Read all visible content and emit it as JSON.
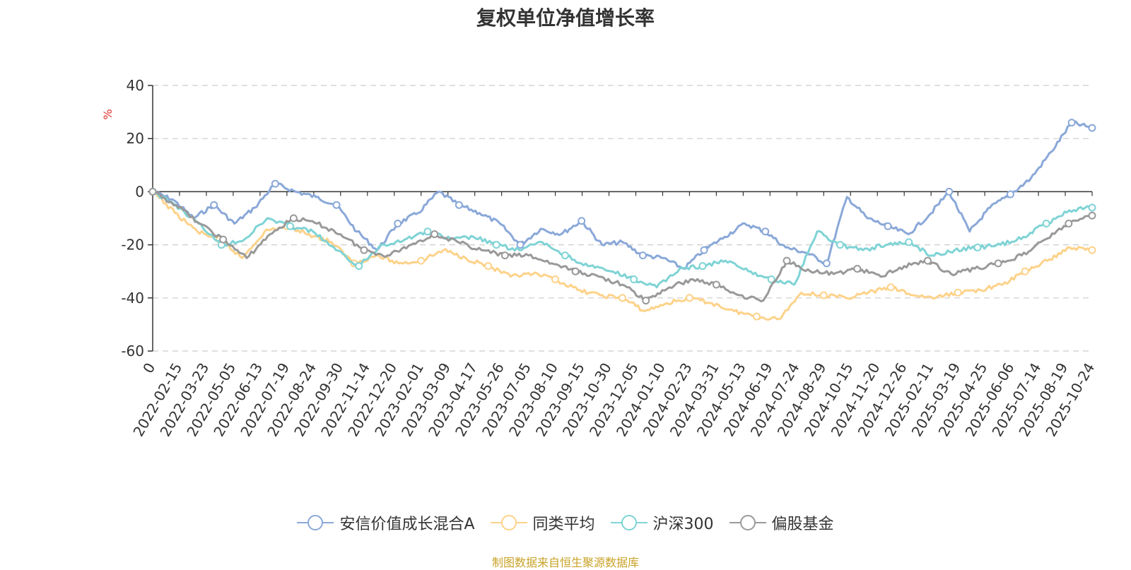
{
  "chart_data": {
    "type": "line",
    "title": "复权单位净值增长率",
    "ylabel": "%",
    "xlabel": "",
    "ylim": [
      -60,
      40
    ],
    "yticks": [
      40,
      20,
      0,
      -20,
      -40,
      -60
    ],
    "grid": true,
    "legend_position": "bottom",
    "x_tick_labels": [
      "0",
      "2022-02-15",
      "2022-03-23",
      "2022-05-05",
      "2022-06-13",
      "2022-07-19",
      "2022-08-24",
      "2022-09-30",
      "2022-11-14",
      "2022-12-20",
      "2023-02-01",
      "2023-03-09",
      "2023-04-17",
      "2023-05-26",
      "2023-07-05",
      "2023-08-10",
      "2023-09-15",
      "2023-10-30",
      "2023-12-05",
      "2024-01-10",
      "2024-02-23",
      "2024-03-31",
      "2024-05-13",
      "2024-06-19",
      "2024-07-24",
      "2024-08-29",
      "2024-10-15",
      "2024-11-20",
      "2024-12-26",
      "2025-02-11",
      "2025-03-19",
      "2025-04-25",
      "2025-06-06",
      "2025-07-14",
      "2025-08-19",
      "2025-10-24"
    ],
    "series": [
      {
        "name": "安信价值成长混合A",
        "color": "#8aa8d8",
        "values": [
          0,
          -3,
          -10,
          -5,
          -12,
          -6,
          3,
          0,
          -2,
          -5,
          -15,
          -22,
          -12,
          -8,
          0,
          -5,
          -8,
          -12,
          -20,
          -14,
          -16,
          -11,
          -20,
          -19,
          -24,
          -25,
          -29,
          -22,
          -17,
          -12,
          -15,
          -21,
          -23,
          -27,
          -2,
          -10,
          -13,
          -16,
          -9,
          0,
          -15,
          -6,
          -1,
          5,
          15,
          26,
          24
        ]
      },
      {
        "name": "同类平均",
        "color": "#fdd28a",
        "values": [
          0,
          -8,
          -15,
          -18,
          -25,
          -15,
          -13,
          -16,
          -19,
          -27,
          -24,
          -27,
          -26,
          -22,
          -25,
          -28,
          -32,
          -31,
          -33,
          -37,
          -39,
          -40,
          -45,
          -42,
          -40,
          -42,
          -45,
          -47,
          -48,
          -38,
          -39,
          -40,
          -38,
          -36,
          -39,
          -40,
          -38,
          -37,
          -35,
          -30,
          -26,
          -21,
          -22
        ]
      },
      {
        "name": "沪深300",
        "color": "#7fd3d5",
        "values": [
          0,
          -5,
          -12,
          -20,
          -18,
          -10,
          -13,
          -15,
          -22,
          -28,
          -20,
          -18,
          -15,
          -18,
          -17,
          -20,
          -22,
          -19,
          -24,
          -28,
          -30,
          -33,
          -36,
          -29,
          -28,
          -26,
          -30,
          -33,
          -35,
          -15,
          -20,
          -22,
          -20,
          -19,
          -24,
          -22,
          -21,
          -20,
          -17,
          -12,
          -7,
          -6
        ]
      },
      {
        "name": "偏股基金",
        "color": "#999999",
        "values": [
          0,
          -5,
          -12,
          -18,
          -25,
          -16,
          -10,
          -12,
          -16,
          -22,
          -24,
          -20,
          -16,
          -19,
          -22,
          -24,
          -24,
          -27,
          -30,
          -32,
          -35,
          -41,
          -36,
          -33,
          -35,
          -39,
          -41,
          -26,
          -30,
          -31,
          -29,
          -32,
          -28,
          -26,
          -31,
          -29,
          -27,
          -24,
          -18,
          -12,
          -9
        ]
      }
    ]
  },
  "source_text": "制图数据来自恒生聚源数据库"
}
